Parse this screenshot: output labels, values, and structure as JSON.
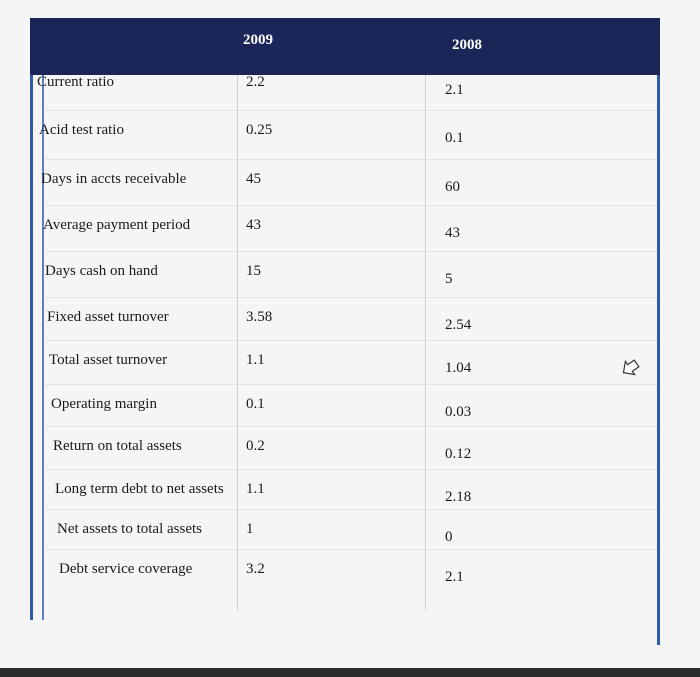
{
  "table": {
    "header": [
      "2009",
      "2008"
    ],
    "rows": [
      [
        "Current ratio",
        "2.2",
        "2.1"
      ],
      [
        "Acid test ratio",
        "0.25",
        "0.1"
      ],
      [
        "Days in accts receivable",
        "45",
        "60"
      ],
      [
        "Average payment period",
        "43",
        "43"
      ],
      [
        "Days cash on hand",
        "15",
        "5"
      ],
      [
        "Fixed asset turnover",
        "3.58",
        "2.54"
      ],
      [
        "Total asset turnover",
        "1.1",
        "1.04"
      ],
      [
        "Operating margin",
        "0.1",
        "0.03"
      ],
      [
        "Return on total assets",
        "0.2",
        "0.12"
      ],
      [
        "Long term debt to net assets",
        "1.1",
        "2.18"
      ],
      [
        "Net assets to total assets",
        "1",
        "0"
      ],
      [
        "Debt service coverage",
        "3.2",
        "2.1"
      ]
    ]
  }
}
